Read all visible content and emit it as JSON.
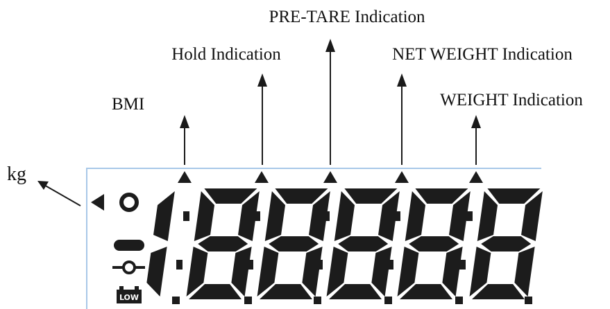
{
  "labels": {
    "pre_tare": "PRE-TARE Indication",
    "hold": "Hold Indication",
    "net_weight": "NET WEIGHT Indication",
    "bmi": "BMI",
    "weight": "WEIGHT Indication",
    "kg": "kg"
  },
  "display": {
    "battery": "LOW"
  }
}
